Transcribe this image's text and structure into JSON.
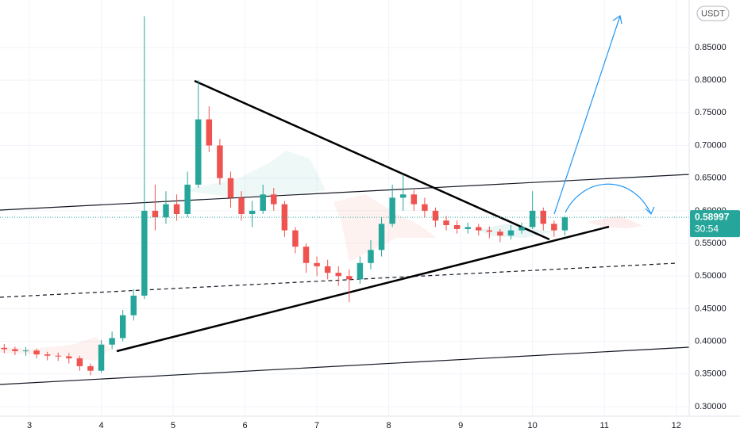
{
  "chart_data": {
    "type": "candlestick",
    "currency": "USDT",
    "countdown": "30:54",
    "last_price": 0.58997,
    "up_color": "#26a69a",
    "down_color": "#ef5350",
    "last_price_color": "#26a69a",
    "grid": true,
    "xlim": [
      2.591,
      12.18
    ],
    "xticks": [
      3,
      4,
      5,
      6,
      7,
      8,
      9,
      10,
      11,
      12
    ],
    "ylim": [
      0.2854,
      0.9228
    ],
    "yticks": [
      {
        "value": 0.3,
        "label": "0.30000"
      },
      {
        "value": 0.35,
        "label": "0.35000"
      },
      {
        "value": 0.4,
        "label": "0.40000"
      },
      {
        "value": 0.45,
        "label": "0.45000"
      },
      {
        "value": 0.5,
        "label": "0.50000"
      },
      {
        "value": 0.55,
        "label": "0.55000"
      },
      {
        "value": 0.6,
        "label": "0.60000"
      },
      {
        "value": 0.65,
        "label": "0.65000"
      },
      {
        "value": 0.7,
        "label": "0.70000"
      },
      {
        "value": 0.75,
        "label": "0.75000"
      },
      {
        "value": 0.8,
        "label": "0.80000"
      },
      {
        "value": 0.85,
        "label": "0.85000"
      }
    ],
    "x": [
      2.65,
      2.8,
      2.95,
      3.1,
      3.25,
      3.4,
      3.55,
      3.7,
      3.85,
      4.0,
      4.15,
      4.3,
      4.45,
      4.6,
      4.75,
      4.9,
      5.05,
      5.2,
      5.35,
      5.5,
      5.65,
      5.8,
      5.95,
      6.1,
      6.25,
      6.4,
      6.55,
      6.7,
      6.85,
      7.0,
      7.15,
      7.3,
      7.45,
      7.6,
      7.75,
      7.9,
      8.05,
      8.2,
      8.35,
      8.5,
      8.65,
      8.8,
      8.95,
      9.1,
      9.25,
      9.4,
      9.55,
      9.7,
      9.85,
      10.0,
      10.15,
      10.3,
      10.45
    ],
    "open": [
      0.39,
      0.388,
      0.385,
      0.386,
      0.38,
      0.378,
      0.377,
      0.374,
      0.362,
      0.355,
      0.395,
      0.405,
      0.44,
      0.47,
      0.6,
      0.59,
      0.61,
      0.595,
      0.64,
      0.74,
      0.7,
      0.65,
      0.62,
      0.595,
      0.6,
      0.625,
      0.61,
      0.57,
      0.545,
      0.52,
      0.515,
      0.505,
      0.5,
      0.495,
      0.52,
      0.54,
      0.58,
      0.62,
      0.625,
      0.61,
      0.6,
      0.585,
      0.578,
      0.572,
      0.575,
      0.57,
      0.568,
      0.562,
      0.57,
      0.575,
      0.6,
      0.58,
      0.57
    ],
    "high": [
      0.396,
      0.392,
      0.391,
      0.389,
      0.384,
      0.383,
      0.382,
      0.378,
      0.366,
      0.402,
      0.415,
      0.448,
      0.48,
      0.898,
      0.64,
      0.63,
      0.625,
      0.66,
      0.8,
      0.76,
      0.71,
      0.66,
      0.63,
      0.615,
      0.64,
      0.635,
      0.615,
      0.575,
      0.55,
      0.53,
      0.525,
      0.515,
      0.51,
      0.53,
      0.555,
      0.59,
      0.64,
      0.655,
      0.632,
      0.62,
      0.605,
      0.592,
      0.585,
      0.582,
      0.58,
      0.576,
      0.572,
      0.578,
      0.582,
      0.63,
      0.605,
      0.585,
      0.592
    ],
    "low": [
      0.382,
      0.379,
      0.378,
      0.374,
      0.371,
      0.37,
      0.366,
      0.355,
      0.348,
      0.352,
      0.388,
      0.4,
      0.432,
      0.465,
      0.57,
      0.58,
      0.585,
      0.59,
      0.635,
      0.69,
      0.64,
      0.605,
      0.585,
      0.575,
      0.595,
      0.6,
      0.56,
      0.535,
      0.505,
      0.5,
      0.495,
      0.485,
      0.46,
      0.488,
      0.51,
      0.53,
      0.575,
      0.6,
      0.6,
      0.59,
      0.575,
      0.57,
      0.565,
      0.565,
      0.562,
      0.558,
      0.552,
      0.556,
      0.565,
      0.572,
      0.57,
      0.56,
      0.562
    ],
    "close": [
      0.388,
      0.385,
      0.386,
      0.38,
      0.378,
      0.377,
      0.374,
      0.362,
      0.355,
      0.395,
      0.405,
      0.44,
      0.47,
      0.6,
      0.59,
      0.61,
      0.595,
      0.64,
      0.74,
      0.7,
      0.65,
      0.62,
      0.595,
      0.6,
      0.625,
      0.61,
      0.57,
      0.545,
      0.52,
      0.515,
      0.505,
      0.5,
      0.495,
      0.52,
      0.54,
      0.58,
      0.62,
      0.625,
      0.61,
      0.6,
      0.585,
      0.578,
      0.572,
      0.575,
      0.57,
      0.568,
      0.562,
      0.57,
      0.575,
      0.6,
      0.58,
      0.57,
      0.58997
    ]
  }
}
